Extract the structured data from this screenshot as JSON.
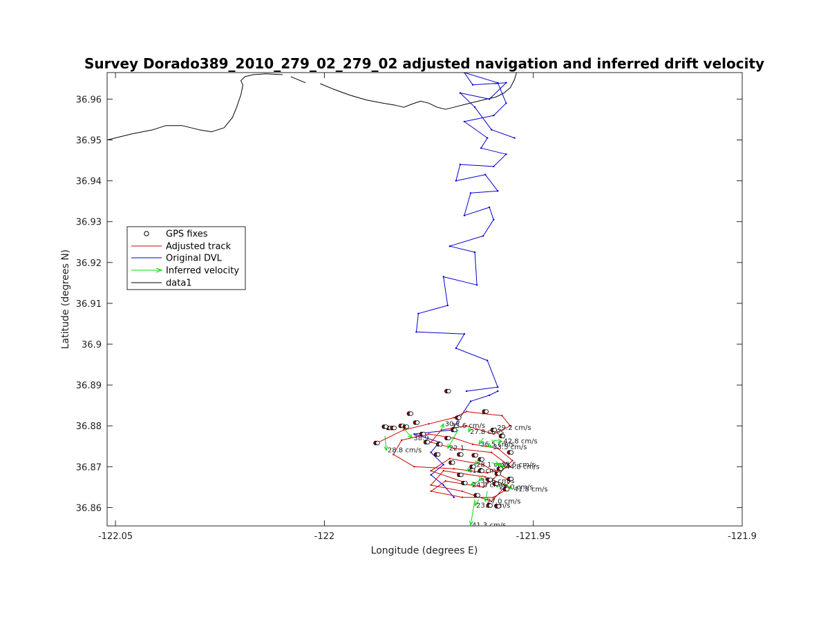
{
  "chart_data": {
    "type": "line",
    "title": "Survey Dorado389_2010_279_02_279_02 adjusted navigation and inferred drift velocity",
    "xlabel": "Longitude (degrees E)",
    "ylabel": "Latitude (degrees N)",
    "xlim": [
      -122.052,
      -121.9
    ],
    "ylim": [
      36.8555,
      36.9665
    ],
    "xticks": [
      -122.05,
      -122,
      -121.95,
      -121.9
    ],
    "xtick_labels": [
      "-122.05",
      "-122",
      "-121.95",
      "-121.9"
    ],
    "yticks": [
      36.86,
      36.87,
      36.88,
      36.89,
      36.9,
      36.91,
      36.92,
      36.93,
      36.94,
      36.95,
      36.96
    ],
    "ytick_labels": [
      "36.86",
      "36.87",
      "36.88",
      "36.89",
      "36.9",
      "36.91",
      "36.92",
      "36.93",
      "36.94",
      "36.95",
      "36.96"
    ],
    "grid": false,
    "legend_position": "left-middle",
    "legend": [
      "GPS fixes",
      "Adjusted track",
      "Original DVL",
      "Inferred velocity",
      "data1"
    ],
    "colors": {
      "gps": "#000000",
      "gps_fill": "#8b0000",
      "adjusted": "#cc0000",
      "dvl": "#0000cc",
      "velocity": "#00dd00",
      "coast": "#000000"
    },
    "series": [
      {
        "name": "data1",
        "style": "coast",
        "segments": [
          {
            "x": [
              -122.052,
              -122.046,
              -122.041,
              -122.038,
              -122.034,
              -122.03,
              -122.027,
              -122.024,
              -122.022,
              -122.021,
              -122.02,
              -122.0195,
              -122.02,
              -122.019,
              -122.017,
              -122.014,
              -122.01
            ],
            "y": [
              36.95,
              36.9515,
              36.9525,
              36.9535,
              36.9535,
              36.9525,
              36.952,
              36.953,
              36.9555,
              36.958,
              36.961,
              36.9635,
              36.9645,
              36.9655,
              36.966,
              36.9662,
              36.966
            ]
          },
          {
            "x": [
              -122.008,
              -122.0045
            ],
            "y": [
              36.9655,
              36.964
            ]
          },
          {
            "x": [
              -122.001,
              -121.998,
              -121.994,
              -121.99,
              -121.986,
              -121.983,
              -121.981,
              -121.979,
              -121.977,
              -121.975,
              -121.973,
              -121.971,
              -121.969,
              -121.966,
              -121.962,
              -121.959,
              -121.957,
              -121.9555,
              -121.9545,
              -121.954
            ],
            "y": [
              36.9638,
              36.9625,
              36.961,
              36.9598,
              36.959,
              36.9585,
              36.958,
              36.9588,
              36.9595,
              36.959,
              36.958,
              36.9575,
              36.958,
              36.9588,
              36.9598,
              36.9605,
              36.9615,
              36.9628,
              36.9648,
              36.9665
            ]
          }
        ]
      },
      {
        "name": "Original DVL",
        "style": "dvl",
        "segments": [
          {
            "x": [
              -121.966,
              -121.9585,
              -121.961,
              -121.9685,
              -121.9665,
              -121.978,
              -121.9775,
              -121.9705,
              -121.9715,
              -121.9635,
              -121.964,
              -121.97,
              -121.962,
              -121.9595,
              -121.9605,
              -121.9665,
              -121.965,
              -121.9585,
              -121.9615,
              -121.9685,
              -121.9675,
              -121.9595,
              -121.9565,
              -121.9625,
              -121.961,
              -121.9665,
              -121.9595,
              -121.9565,
              -121.9585,
              -121.9665,
              -121.9645,
              -121.9565,
              -121.9605,
              -121.9675,
              -121.964,
              -121.96,
              -121.9545
            ],
            "y": [
              36.8885,
              36.8895,
              36.896,
              36.899,
              36.9025,
              36.903,
              36.9075,
              36.9095,
              36.9165,
              36.9145,
              36.9225,
              36.924,
              36.9265,
              36.9305,
              36.9335,
              36.9315,
              36.937,
              36.9375,
              36.9415,
              36.94,
              36.944,
              36.9435,
              36.9465,
              36.948,
              36.9505,
              36.9545,
              36.956,
              36.959,
              36.964,
              36.9665,
              36.9635,
              36.964,
              36.96,
              36.9615,
              36.958,
              36.9525,
              36.9505
            ]
          },
          {
            "x": [
              -121.9585,
              -121.9605,
              -121.965,
              -121.9695,
              -121.9785,
              -121.9725,
              -121.9745,
              -121.9715,
              -121.9745,
              -121.9715,
              -121.969
            ],
            "y": [
              36.8885,
              36.8875,
              36.886,
              36.879,
              36.878,
              36.876,
              36.8735,
              36.8705,
              36.868,
              36.8655,
              36.8625
            ]
          }
        ]
      },
      {
        "name": "Adjusted track",
        "style": "adjusted",
        "segments": [
          {
            "x": [
              -121.987,
              -121.981,
              -121.975,
              -121.969,
              -121.966,
              -121.962,
              -121.9575,
              -121.9555,
              -121.9595,
              -121.966,
              -121.972,
              -121.9745,
              -121.969,
              -121.96,
              -121.9555,
              -121.961,
              -121.969,
              -121.9785,
              -121.9835,
              -121.9815,
              -121.975,
              -121.969,
              -121.9645,
              -121.9585,
              -121.955,
              -121.9585,
              -121.962,
              -121.971,
              -121.9745,
              -121.967,
              -121.9595,
              -121.9555,
              -121.9615,
              -121.9715,
              -121.9745,
              -121.967,
              -121.96,
              -121.9555,
              -121.962,
              -121.97,
              -121.9745,
              -121.966
            ],
            "y": [
              36.876,
              36.879,
              36.8805,
              36.882,
              36.8835,
              36.883,
              36.8825,
              36.88,
              36.878,
              36.88,
              36.879,
              36.876,
              36.8745,
              36.8735,
              36.87,
              36.8685,
              36.8695,
              36.87,
              36.873,
              36.8765,
              36.878,
              36.877,
              36.8755,
              36.8745,
              36.8715,
              36.868,
              36.865,
              36.8665,
              36.864,
              36.8625,
              36.8625,
              36.865,
              36.8675,
              36.869,
              36.8655,
              36.864,
              36.8615,
              36.8665,
              36.8705,
              36.872,
              36.869,
              36.866
            ]
          }
        ]
      },
      {
        "name": "GPS fixes",
        "style": "gps",
        "x": [
          -121.9845,
          -121.9835,
          -121.9815,
          -121.9805,
          -121.9795,
          -121.978,
          -121.9755,
          -121.973,
          -121.9695,
          -121.9675,
          -121.9665,
          -121.9635,
          -121.9605,
          -121.9585,
          -121.9565,
          -121.9555,
          -121.958,
          -121.9625,
          -121.9645,
          -121.9675,
          -121.969,
          -121.968,
          -121.9705,
          -121.9615,
          -121.9595,
          -121.9575,
          -121.9555,
          -121.964,
          -121.9625,
          -121.9605,
          -121.959,
          -121.9585,
          -121.9705,
          -121.9725,
          -121.9765,
          -121.9875,
          -121.9855
        ],
        "y": [
          36.8795,
          36.8795,
          36.88,
          36.8798,
          36.883,
          36.8808,
          36.876,
          36.873,
          36.871,
          36.868,
          36.866,
          36.863,
          36.8605,
          36.8603,
          36.8645,
          36.867,
          36.8695,
          36.869,
          36.87,
          36.873,
          36.879,
          36.882,
          36.8885,
          36.8835,
          36.879,
          36.8775,
          36.8735,
          36.8728,
          36.8718,
          36.8668,
          36.8658,
          36.8683,
          36.877,
          36.8755,
          36.878,
          36.8758,
          36.8798
        ]
      },
      {
        "name": "Inferred velocity",
        "style": "velocity",
        "arrows": [
          {
            "x0": -121.9855,
            "y0": 36.8775,
            "x1": -121.9852,
            "y1": 36.874,
            "label": "28.8 cm/s"
          },
          {
            "x0": -121.9815,
            "y0": 36.88,
            "x1": -121.979,
            "y1": 36.877,
            "label": "38.9"
          },
          {
            "x0": -121.972,
            "y0": 36.879,
            "x1": -121.9715,
            "y1": 36.8805,
            "label": "30.7"
          },
          {
            "x0": -121.97,
            "y0": 36.88,
            "x1": -121.97,
            "y1": 36.88,
            "label": "35.6 cm/s"
          },
          {
            "x0": -121.968,
            "y0": 36.879,
            "x1": -121.9705,
            "y1": 36.8745,
            "label": "22.1"
          },
          {
            "x0": -121.965,
            "y0": 36.8795,
            "x1": -121.9655,
            "y1": 36.8785,
            "label": "27.8 cm/s"
          },
          {
            "x0": -121.9595,
            "y0": 36.879,
            "x1": -121.959,
            "y1": 36.8795,
            "label": "29.2 cm/s"
          },
          {
            "x0": -121.962,
            "y0": 36.877,
            "x1": -121.963,
            "y1": 36.8755,
            "label": "36.5 cm/s"
          },
          {
            "x0": -121.961,
            "y0": 36.8755,
            "x1": -121.96,
            "y1": 36.8748,
            "label": "33.5 cm/s"
          },
          {
            "x0": -121.96,
            "y0": 36.8765,
            "x1": -121.9575,
            "y1": 36.8762,
            "label": "42.8 cm/s"
          },
          {
            "x0": -121.963,
            "y0": 36.872,
            "x1": -121.964,
            "y1": 36.8705,
            "label": "28.1 cm/s"
          },
          {
            "x0": -121.96,
            "y0": 36.871,
            "x1": -121.958,
            "y1": 36.8705,
            "label": "35.5 cm/s"
          },
          {
            "x0": -121.959,
            "y0": 36.8705,
            "x1": -121.957,
            "y1": 36.87,
            "label": "44.8 cm/s"
          },
          {
            "x0": -121.964,
            "y0": 36.87,
            "x1": -121.966,
            "y1": 36.869,
            "label": "41.5 cm/s"
          },
          {
            "x0": -121.962,
            "y0": 36.868,
            "x1": -121.963,
            "y1": 36.8665,
            "label": "35.6 cm/s"
          },
          {
            "x0": -121.962,
            "y0": 36.867,
            "x1": -121.965,
            "y1": 36.8655,
            "label": "24.0 cm/s"
          },
          {
            "x0": -121.959,
            "y0": 36.866,
            "x1": -121.9585,
            "y1": 36.865,
            "label": "28.0 cm/s"
          },
          {
            "x0": -121.957,
            "y0": 36.866,
            "x1": -121.955,
            "y1": 36.8645,
            "label": "41.8 cm/s"
          },
          {
            "x0": -121.961,
            "y0": 36.864,
            "x1": -121.9615,
            "y1": 36.8615,
            "label": "27.0 cm/s"
          },
          {
            "x0": -121.963,
            "y0": 36.862,
            "x1": -121.964,
            "y1": 36.8605,
            "label": "23.3 cm/s"
          },
          {
            "x0": -121.964,
            "y0": 36.862,
            "x1": -121.965,
            "y1": 36.8557,
            "label": "41.3 cm/s"
          }
        ]
      }
    ]
  }
}
